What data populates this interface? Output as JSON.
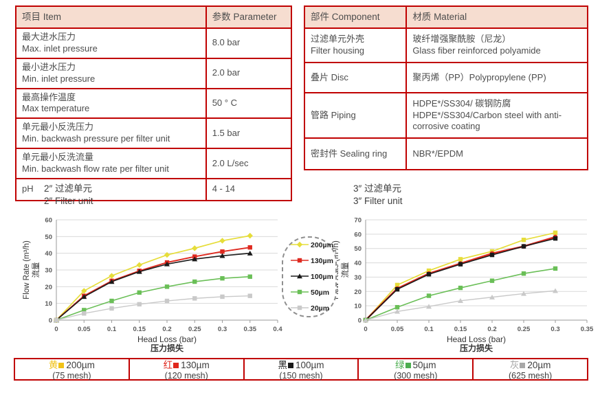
{
  "colors": {
    "table_border": "#c00000",
    "header_fill": "#f6ddd0",
    "grid": "#d9d9d9",
    "axis": "#9a9a9a",
    "tick_text": "#595959",
    "label_text": "#333333"
  },
  "tables": {
    "param": {
      "headers": [
        "项目 Item",
        "参数 Parameter"
      ],
      "rows": [
        {
          "zh": "最大进水压力",
          "en": "Max. inlet pressure",
          "value": "8.0 bar"
        },
        {
          "zh": "最小进水压力",
          "en": "Min. inlet pressure",
          "value": "2.0 bar"
        },
        {
          "zh": "最高操作温度",
          "en": "Max temperature",
          "value": "50 ° C"
        },
        {
          "zh": "单元最小反洗压力",
          "en": "Min. backwash pressure per filter unit",
          "value": "1.5 bar"
        },
        {
          "zh": "单元最小反洗流量",
          "en": "Min. backwash flow rate per filter unit",
          "value": "2.0 L/sec"
        },
        {
          "zh": "pH",
          "en": "",
          "value": "4 - 14"
        }
      ]
    },
    "material": {
      "headers": [
        "部件 Component",
        "材质 Material"
      ],
      "rows": [
        {
          "zh": "过滤单元外壳",
          "en": "Filter housing",
          "material_zh": "玻纤增强聚酰胺（尼龙）",
          "material_en": "Glass fiber reinforced polyamide"
        },
        {
          "zh": "叠片 Disc",
          "en": "",
          "material_zh": "聚丙烯（PP）Polypropylene (PP)",
          "material_en": ""
        },
        {
          "zh": "管路 Piping",
          "en": "",
          "material_zh": "HDPE*/SS304/ 碳钢防腐",
          "material_en": "HDPE*/SS304/Carbon steel with anti-corrosive coating"
        },
        {
          "zh": "密封件 Sealing ring",
          "en": "",
          "material_zh": "NBR*/EPDM",
          "material_en": ""
        }
      ]
    }
  },
  "chart_data": [
    {
      "type": "line",
      "title_zh": "2″ 过滤单元",
      "title_en": "2″ Filter unit",
      "xlabel": "Head Loss (bar)",
      "xlabel_zh": "压力损失",
      "ylabel_zh": "流量",
      "ylabel_en": "Flow Rate (m³/h)",
      "xlim": [
        0,
        0.4
      ],
      "ylim": [
        0,
        60
      ],
      "xtick_step": 0.05,
      "ytick_step": 10,
      "grid": "horizontal",
      "x": [
        0,
        0.05,
        0.1,
        0.15,
        0.2,
        0.25,
        0.3,
        0.35
      ],
      "series": [
        {
          "name": "200µm",
          "color": "#e6dd3a",
          "marker": "diamond",
          "lw": 1.7,
          "values": [
            0,
            17.5,
            26.5,
            33,
            39,
            43,
            47.5,
            50.5
          ]
        },
        {
          "name": "130µm",
          "color": "#de2a20",
          "marker": "square",
          "lw": 1.9,
          "values": [
            0,
            14.5,
            23.5,
            29.5,
            34.5,
            38,
            41,
            43.5
          ]
        },
        {
          "name": "100µm",
          "color": "#1a1a1a",
          "marker": "triangle",
          "lw": 1.6,
          "values": [
            0,
            14,
            23,
            29,
            33.5,
            36.5,
            38.5,
            40
          ]
        },
        {
          "name": "50µm",
          "color": "#6abf57",
          "marker": "square",
          "lw": 1.6,
          "values": [
            0,
            6,
            11.5,
            16.5,
            20,
            23,
            25,
            26
          ]
        },
        {
          "name": "20µm",
          "color": "#c9c9c9",
          "marker": "square",
          "lw": 1.4,
          "values": [
            0,
            4,
            7,
            9.5,
            11.5,
            13,
            14,
            14.5
          ]
        }
      ]
    },
    {
      "type": "line",
      "title_zh": "3″ 过滤单元",
      "title_en": "3″ Filter unit",
      "xlabel": "Head Loss (bar)",
      "xlabel_zh": "压力损失",
      "ylabel_zh": "流量",
      "ylabel_en": "Flow Rate (m³/h)",
      "xlim": [
        0,
        0.35
      ],
      "ylim": [
        0,
        70
      ],
      "xtick_step": 0.05,
      "ytick_step": 10,
      "grid": "horizontal",
      "x": [
        0,
        0.05,
        0.1,
        0.15,
        0.2,
        0.25,
        0.3
      ],
      "series": [
        {
          "name": "200µm",
          "color": "#e6dd3a",
          "marker": "square",
          "lw": 1.7,
          "values": [
            0,
            24.5,
            34.5,
            42.5,
            48,
            56,
            61
          ]
        },
        {
          "name": "130µm",
          "color": "#de2a20",
          "marker": "circle",
          "lw": 2.6,
          "values": [
            0,
            22,
            32.5,
            39.5,
            46.5,
            51.5,
            58
          ]
        },
        {
          "name": "100µm",
          "color": "#1a1a1a",
          "marker": "square",
          "lw": 1.6,
          "values": [
            0,
            21.5,
            32,
            39,
            45.5,
            51.5,
            57
          ]
        },
        {
          "name": "50µm",
          "color": "#6abf57",
          "marker": "square",
          "lw": 1.6,
          "values": [
            0,
            9,
            17,
            22.5,
            27.5,
            32.5,
            36
          ]
        },
        {
          "name": "20µm",
          "color": "#c9c9c9",
          "marker": "triangle",
          "lw": 1.4,
          "values": [
            0,
            6,
            9.5,
            13.5,
            16,
            18.5,
            20.5
          ]
        }
      ]
    }
  ],
  "series_legend": {
    "items": [
      {
        "label": "200µm",
        "color": "#e6dd3a",
        "marker": "diamond"
      },
      {
        "label": "130µm",
        "color": "#de2a20",
        "marker": "square"
      },
      {
        "label": "100µm",
        "color": "#1a1a1a",
        "marker": "triangle"
      },
      {
        "label": "50µm",
        "color": "#6abf57",
        "marker": "square"
      },
      {
        "label": "20µm",
        "color": "#c9c9c9",
        "marker": "square"
      }
    ]
  },
  "bottom_legend": {
    "cells": [
      {
        "name_zh": "黄",
        "size": "200µm",
        "mesh": "(75 mesh)",
        "color": "#f0c219"
      },
      {
        "name_zh": "红",
        "size": "130µm",
        "mesh": "(120 mesh)",
        "color": "#e0261c"
      },
      {
        "name_zh": "黑",
        "size": "100µm",
        "mesh": "(150 mesh)",
        "color": "#1a1a1a"
      },
      {
        "name_zh": "绿",
        "size": "50µm",
        "mesh": "(300 mesh)",
        "color": "#4cae50"
      },
      {
        "name_zh": "灰",
        "size": "20µm",
        "mesh": "(625 mesh)",
        "color": "#a8a8a8"
      }
    ]
  }
}
